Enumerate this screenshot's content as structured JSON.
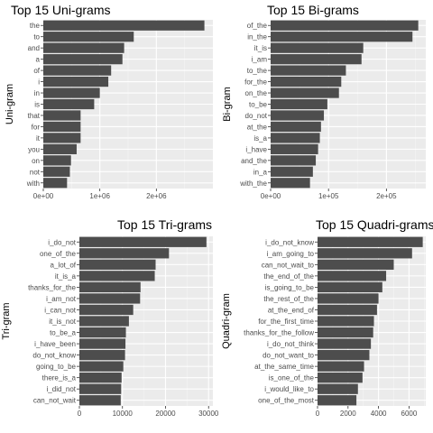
{
  "chart_data": [
    {
      "type": "bar",
      "orientation": "horizontal",
      "title": "Top 15 Uni-grams",
      "ylabel": "Uni-gram",
      "xlabel": "",
      "categories": [
        "the",
        "to",
        "and",
        "a",
        "of",
        "i",
        "in",
        "is",
        "that",
        "for",
        "it",
        "you",
        "on",
        "not",
        "with"
      ],
      "values": [
        2850000,
        1600000,
        1430000,
        1400000,
        1200000,
        1150000,
        1000000,
        900000,
        660000,
        660000,
        660000,
        590000,
        490000,
        470000,
        420000
      ],
      "xlim": [
        0,
        3000000
      ],
      "xticks": [
        0,
        1000000,
        2000000
      ],
      "xtick_labels": [
        "0e+00",
        "1e+06",
        "2e+06"
      ],
      "grid": true
    },
    {
      "type": "bar",
      "orientation": "horizontal",
      "title": "Top 15 Bi-grams",
      "ylabel": "Bi-gram",
      "xlabel": "",
      "categories": [
        "of_the",
        "in_the",
        "it_is",
        "i_am",
        "to_the",
        "for_the",
        "on_the",
        "to_be",
        "do_not",
        "at_the",
        "is_a",
        "i_have",
        "and_the",
        "in_a",
        "with_the"
      ],
      "values": [
        255000,
        245000,
        160000,
        157000,
        130000,
        122000,
        118000,
        98000,
        92000,
        87000,
        85000,
        82000,
        78000,
        73000,
        68000
      ],
      "xlim": [
        0,
        268000
      ],
      "xticks": [
        0,
        100000,
        200000
      ],
      "xtick_labels": [
        "0e+00",
        "1e+05",
        "2e+05"
      ],
      "grid": true
    },
    {
      "type": "bar",
      "orientation": "horizontal",
      "title": "Top 15 Tri-grams",
      "ylabel": "Tri-gram",
      "xlabel": "",
      "categories": [
        "i_do_not",
        "one_of_the",
        "a_lot_of",
        "it_is_a",
        "thanks_for_the",
        "i_am_not",
        "i_can_not",
        "it_is_not",
        "to_be_a",
        "i_have_been",
        "do_not_know",
        "going_to_be",
        "there_is_a",
        "i_did_not",
        "can_not_wait"
      ],
      "values": [
        29500,
        20800,
        17700,
        17500,
        14200,
        14100,
        12500,
        11500,
        10800,
        10700,
        10600,
        10200,
        9800,
        9700,
        9600
      ],
      "xlim": [
        0,
        31000
      ],
      "xticks": [
        0,
        10000,
        20000,
        30000
      ],
      "xtick_labels": [
        "0",
        "10000",
        "20000",
        "30000"
      ],
      "grid": true
    },
    {
      "type": "bar",
      "orientation": "horizontal",
      "title": "Top 15 Quadri-grams",
      "ylabel": "Quadri-gram",
      "xlabel": "",
      "categories": [
        "i_do_not_know",
        "i_am_going_to",
        "can_not_wait_to",
        "the_end_of_the",
        "is_going_to_be",
        "the_rest_of_the",
        "at_the_end_of",
        "for_the_first_time",
        "thanks_for_the_follow",
        "i_do_not_think",
        "do_not_want_to",
        "at_the_same_time",
        "is_one_of_the",
        "i_would_like_to",
        "one_of_the_most"
      ],
      "values": [
        6900,
        6200,
        5000,
        4500,
        4250,
        4000,
        3900,
        3700,
        3650,
        3500,
        3400,
        3050,
        2950,
        2650,
        2550
      ],
      "xlim": [
        0,
        7100
      ],
      "xticks": [
        0,
        2000,
        4000,
        6000
      ],
      "xtick_labels": [
        "0",
        "2000",
        "4000",
        "6000"
      ],
      "grid": true
    }
  ],
  "colors": {
    "bar": "#4d4d4d",
    "panel_background": "#ebebeb",
    "grid_major": "#ffffff",
    "grid_minor": "#f5f5f5",
    "text": "#000000",
    "tick_text": "#4d4d4d"
  }
}
